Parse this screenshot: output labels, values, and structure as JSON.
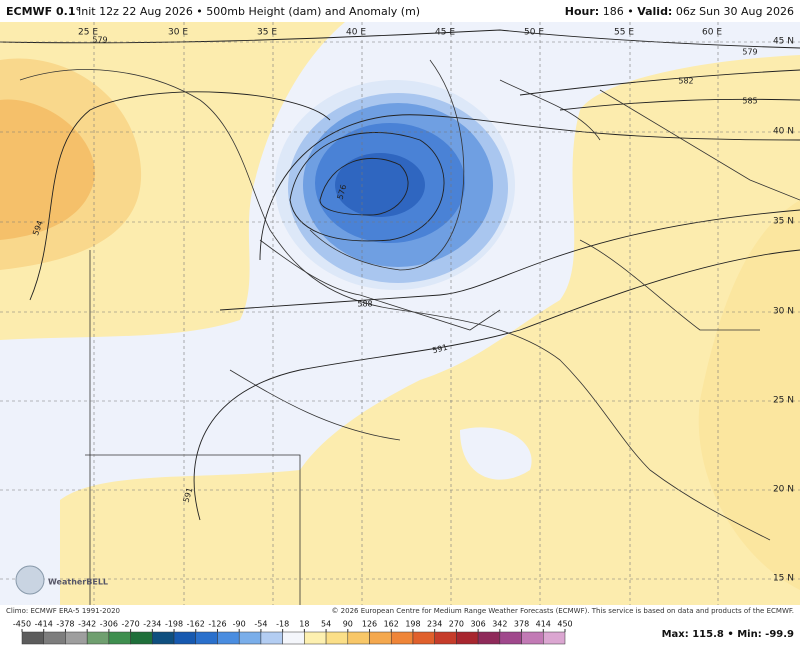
{
  "header": {
    "model": "ECMWF 0.1°",
    "info": "Init 12z 22 Aug 2026 • 500mb Height (dam) and Anomaly (m)",
    "hour_label": "Hour:",
    "hour": "186 •",
    "valid_label": "Valid:",
    "valid": "06z Sun 30 Aug 2026"
  },
  "map": {
    "longitudes": [
      "25 E",
      "30 E",
      "35 E",
      "40 E",
      "45 E",
      "50 E",
      "55 E",
      "60 E"
    ],
    "latitudes": [
      "45 N",
      "40 N",
      "35 N",
      "30 N",
      "25 N",
      "20 N",
      "15 N"
    ],
    "contour_labels": [
      "579",
      "579",
      "582",
      "585",
      "594",
      "576",
      "588",
      "591",
      "591"
    ],
    "logo": "WeatherBELL"
  },
  "footer": {
    "climo": "Climo: ECMWF ERA-5 1991-2020",
    "copyright": "© 2026 European Centre for Medium Range Weather Forecasts (ECMWF). This service is based on data and products of the ECMWF.",
    "extremes": "Max: 115.8 • Min: -99.9"
  },
  "colorbar": {
    "ticks": [
      -450,
      -414,
      -378,
      -342,
      -306,
      -270,
      -234,
      -198,
      -162,
      -126,
      -90,
      -54,
      -18,
      18,
      54,
      90,
      126,
      162,
      198,
      234,
      270,
      306,
      342,
      378,
      414,
      450
    ]
  }
}
